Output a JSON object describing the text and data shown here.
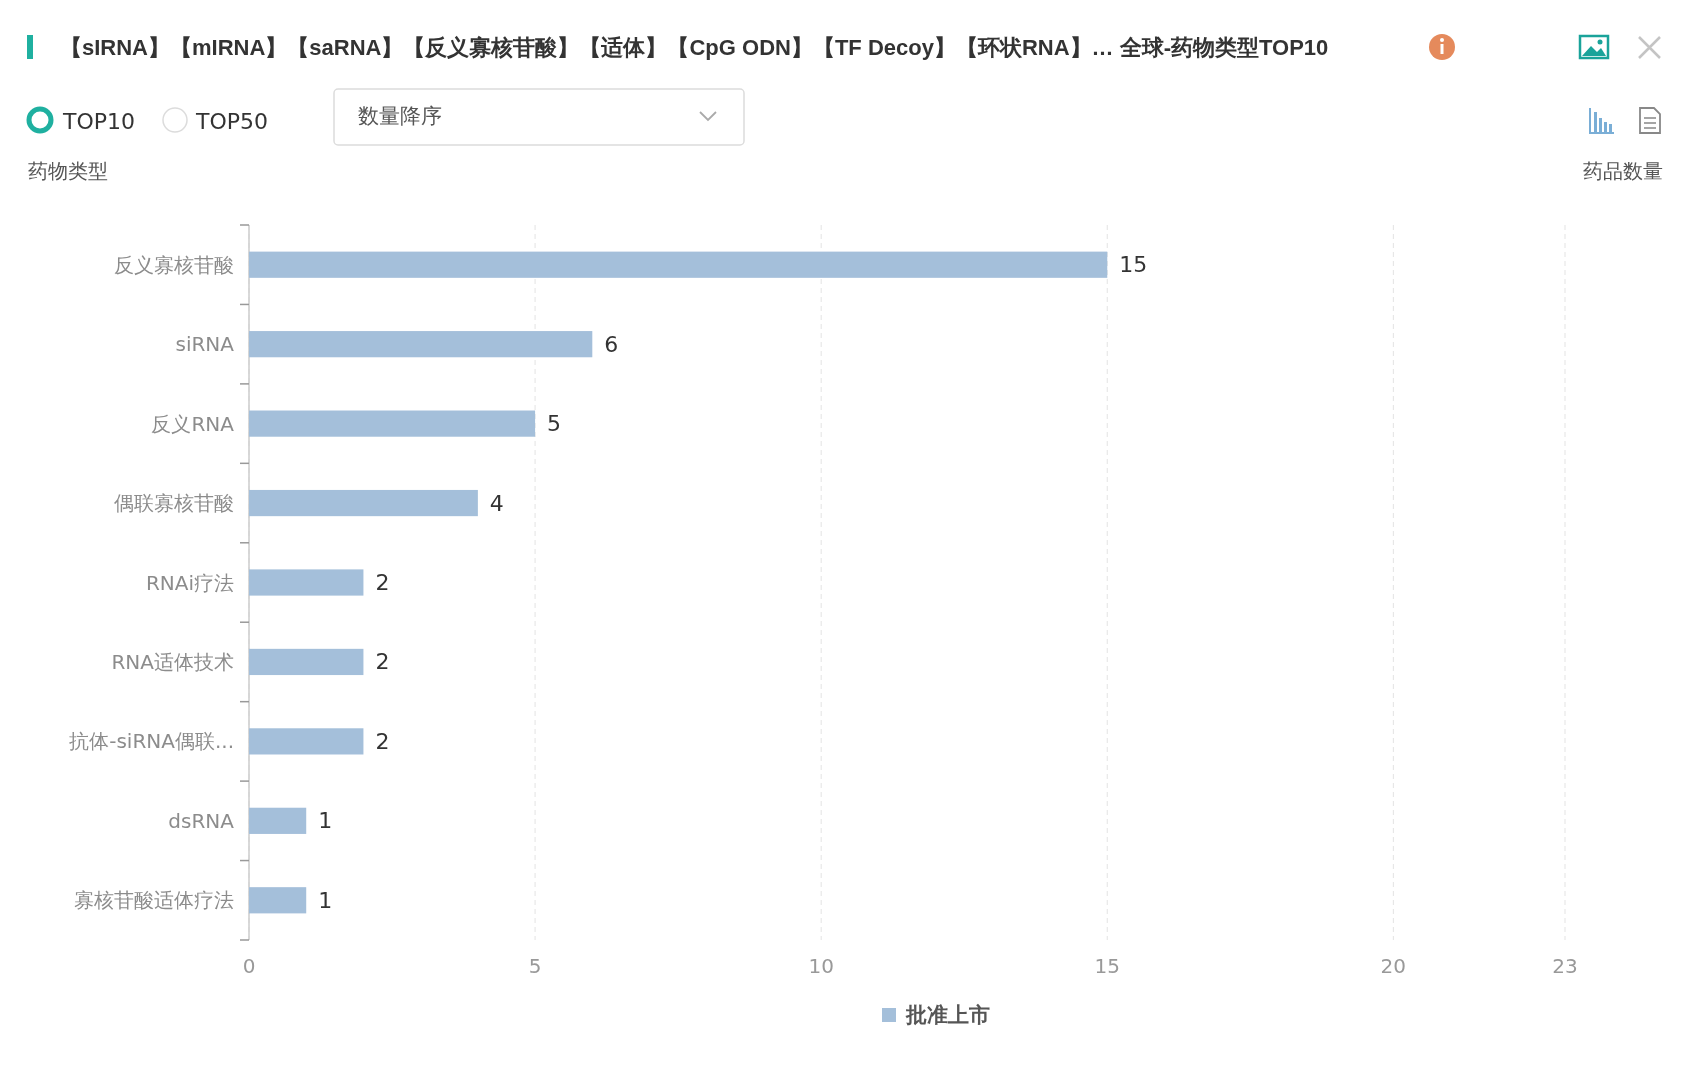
{
  "chart_data": {
    "type": "bar",
    "orientation": "horizontal",
    "title": "【sIRNA】【mIRNA】【saRNA】【反义寡核苷酸】【适体】【CpG ODN】【TF Decoy】【环状RNA】… 全球-药物类型TOP10",
    "ylabel": "药物类型",
    "xlabel": "药品数量",
    "annotations": [
      "TOP10",
      "TOP50",
      "数量降序"
    ],
    "categories": [
      "反义寡核苷酸",
      "siRNA",
      "反义RNA",
      "偶联寡核苷酸",
      "RNAi疗法",
      "RNA适体技术",
      "抗体-siRNA偶联...",
      "dsRNA",
      "寡核苷酸适体疗法"
    ],
    "series": [
      {
        "name": "批准上市",
        "color": "#a4bfda",
        "values": [
          15,
          6,
          5,
          4,
          2,
          2,
          2,
          1,
          1
        ]
      }
    ],
    "xlim": [
      0,
      23
    ],
    "xticks": [
      0,
      5,
      10,
      15,
      20,
      23
    ],
    "grid": "x",
    "legend": "bottom",
    "data_labels": true
  }
}
